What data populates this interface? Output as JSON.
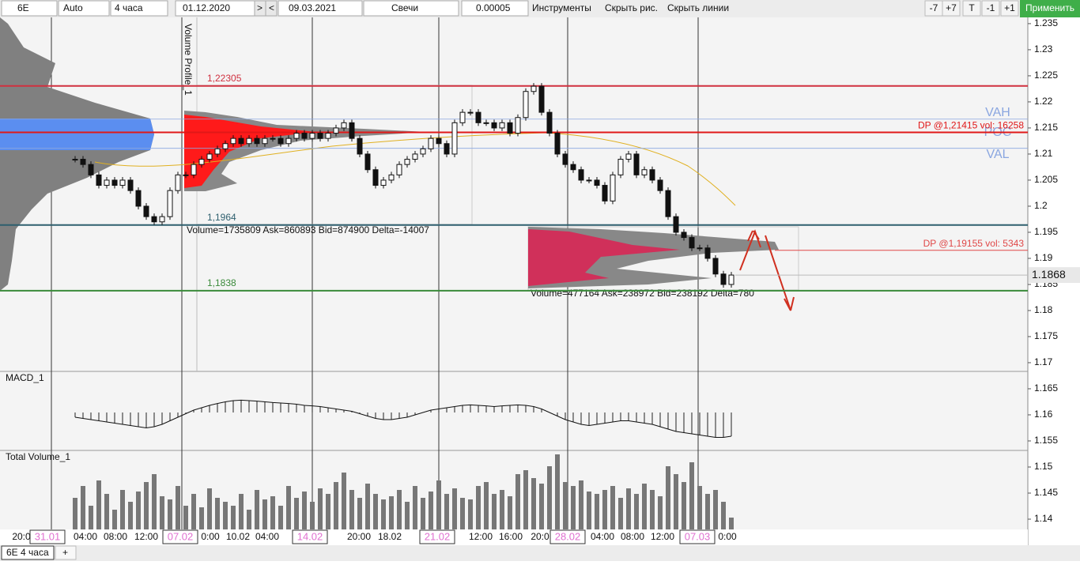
{
  "toolbar": {
    "symbol": "6E",
    "scale": "Auto",
    "timeframe": "4 часа",
    "date_from": "01.12.2020",
    "next": ">",
    "prev": "<",
    "date_to": "09.03.2021",
    "chart_style": "Свечи",
    "tick_size": "0.00005",
    "tools": "Инструменты",
    "hide_drawings": "Скрыть рис.",
    "hide_lines": "Скрыть линии",
    "buttons": [
      "-7",
      "+7",
      "T",
      "-1",
      "+1"
    ],
    "apply": "Применить"
  },
  "chart": {
    "ylim": [
      1.135,
      1.2362
    ],
    "yticks": [
      1.235,
      1.23,
      1.225,
      1.22,
      1.215,
      1.21,
      1.205,
      1.2,
      1.195,
      1.19,
      1.185,
      1.18,
      1.175,
      1.17,
      1.165,
      1.16,
      1.155,
      1.15,
      1.145,
      1.14
    ],
    "closes": [
      1.209,
      1.208,
      1.206,
      1.204,
      1.205,
      1.204,
      1.205,
      1.203,
      1.2,
      1.198,
      1.197,
      1.198,
      1.203,
      1.206,
      1.206,
      1.208,
      1.209,
      1.21,
      1.211,
      1.212,
      1.213,
      1.212,
      1.213,
      1.212,
      1.213,
      1.213,
      1.212,
      1.213,
      1.214,
      1.213,
      1.214,
      1.213,
      1.214,
      1.215,
      1.216,
      1.213,
      1.21,
      1.207,
      1.204,
      1.205,
      1.206,
      1.208,
      1.209,
      1.21,
      1.211,
      1.213,
      1.212,
      1.21,
      1.216,
      1.218,
      1.218,
      1.216,
      1.216,
      1.215,
      1.216,
      1.214,
      1.217,
      1.222,
      1.223,
      1.218,
      1.214,
      1.21,
      1.208,
      1.207,
      1.205,
      1.205,
      1.204,
      1.201,
      1.206,
      1.209,
      1.21,
      1.206,
      1.207,
      1.205,
      1.203,
      1.198,
      1.195,
      1.194,
      1.192,
      1.192,
      1.19,
      1.187,
      1.185,
      1.1868
    ],
    "current_price": 1.1868,
    "levels": [
      {
        "value": 1.22305,
        "label": "1,22305",
        "color": "#d0303f"
      },
      {
        "value": 1.1964,
        "label": "1,1964",
        "color": "#2e5f6e"
      },
      {
        "value": 1.1838,
        "label": "1,1838",
        "color": "#3a8a3a"
      }
    ],
    "dp_lines": [
      {
        "value": 1.21415,
        "label": "DP @1,21415 vol: 16258",
        "color": "#e01818"
      },
      {
        "value": 1.19155,
        "label": "DP @1,19155 vol: 5343",
        "color": "#e04848"
      }
    ],
    "value_area": [
      {
        "value": 1.2167,
        "label": "VAH"
      },
      {
        "value": 1.2141,
        "label": "POC"
      },
      {
        "value": 1.2111,
        "label": "VAL"
      }
    ],
    "profile_label": "Volume Profile_1",
    "profile_stats": [
      "Volume=1735809  Ask=860893  Bid=874900  Delta=-14007",
      "Volume=477164  Ask=238972  Bid=238192  Delta=780"
    ],
    "time_labels": [
      "20:0",
      "31.01",
      "04:00",
      "08:00",
      "12:00",
      "07.02",
      "0:00",
      "10.02",
      "04:00",
      "14.02",
      "20:00",
      "18.02",
      "21.02",
      "12:00",
      "16:00",
      "20:0",
      "28.02",
      "04:00",
      "08:00",
      "12:00",
      "07.03",
      "0:00"
    ],
    "highlighted_time_labels": [
      1,
      5,
      9,
      12,
      16,
      20
    ],
    "macd": {
      "title": "MACD_1",
      "values": [
        -0.2,
        -0.25,
        -0.3,
        -0.35,
        -0.4,
        -0.45,
        -0.5,
        -0.55,
        -0.6,
        -0.65,
        -0.6,
        -0.5,
        -0.35,
        -0.2,
        -0.05,
        0.1,
        0.2,
        0.3,
        0.38,
        0.45,
        0.5,
        0.52,
        0.5,
        0.48,
        0.45,
        0.42,
        0.4,
        0.38,
        0.35,
        0.3,
        0.28,
        0.25,
        0.2,
        0.15,
        0.1,
        0.05,
        -0.05,
        -0.15,
        -0.25,
        -0.3,
        -0.3,
        -0.25,
        -0.2,
        -0.1,
        0,
        0.1,
        0.15,
        0.2,
        0.25,
        0.3,
        0.32,
        0.3,
        0.28,
        0.25,
        0.28,
        0.3,
        0.32,
        0.3,
        0.25,
        0.15,
        0,
        -0.15,
        -0.3,
        -0.4,
        -0.5,
        -0.55,
        -0.5,
        -0.45,
        -0.4,
        -0.35,
        -0.35,
        -0.4,
        -0.45,
        -0.5,
        -0.6,
        -0.7,
        -0.8,
        -0.85,
        -0.9,
        -0.95,
        -1,
        -1.05,
        -1.05,
        -1.0
      ]
    },
    "volume": {
      "title": "Total Volume_1",
      "values": [
        40,
        55,
        30,
        62,
        45,
        25,
        50,
        35,
        48,
        60,
        70,
        42,
        38,
        55,
        30,
        45,
        28,
        52,
        40,
        35,
        30,
        45,
        25,
        50,
        38,
        42,
        30,
        55,
        40,
        48,
        35,
        52,
        45,
        60,
        72,
        50,
        40,
        58,
        45,
        38,
        42,
        50,
        35,
        55,
        40,
        48,
        62,
        45,
        52,
        40,
        38,
        55,
        60,
        45,
        50,
        42,
        70,
        75,
        65,
        58,
        80,
        95,
        60,
        55,
        62,
        48,
        45,
        50,
        55,
        40,
        52,
        45,
        58,
        50,
        42,
        80,
        70,
        60,
        85,
        55,
        45,
        50,
        35,
        15
      ]
    }
  },
  "tabs": [
    "6E 4 часа",
    "+"
  ]
}
